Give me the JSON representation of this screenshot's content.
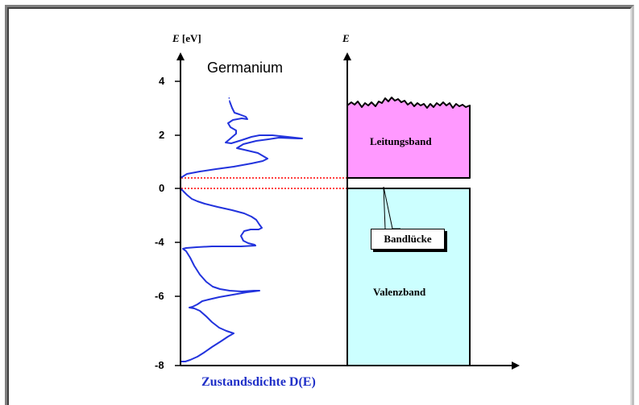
{
  "diagram": {
    "title": "Germanium",
    "left_axis_label_symbol": "E",
    "left_axis_label_unit": "[eV]",
    "right_axis_label_symbol": "E",
    "xlabel": "Zustandsdichte D(E)",
    "y_ticks": [
      "4",
      "2",
      "0",
      "-4",
      "-6",
      "-8"
    ],
    "bands": {
      "conduction": "Leitungsband",
      "valence": "Valenzband",
      "gap_callout": "Bandlücke"
    },
    "colors": {
      "conduction_band": "#ff99ff",
      "valence_band": "#ccffff",
      "dos_curve": "#2233dd",
      "band_edge_dotted": "#ff0000",
      "axes": "#000000"
    }
  }
}
